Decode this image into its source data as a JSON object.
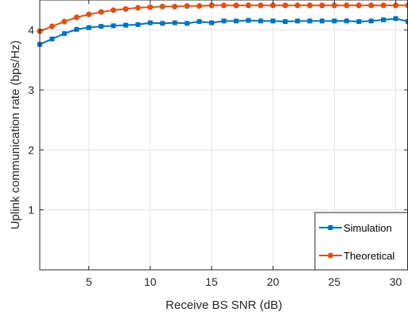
{
  "chart_data": {
    "type": "line",
    "xlabel": "Receive BS SNR (dB)",
    "ylabel": "Uplink communication rate (bps/Hz)",
    "xlim": [
      1,
      31
    ],
    "ylim": [
      0,
      4.5
    ],
    "xticks": [
      5,
      10,
      15,
      20,
      25,
      30
    ],
    "yticks": [
      1,
      2,
      3,
      4
    ],
    "grid": true,
    "legend_position": "bottom-right",
    "x": [
      1,
      2,
      3,
      4,
      5,
      6,
      7,
      8,
      9,
      10,
      11,
      12,
      13,
      14,
      15,
      16,
      17,
      18,
      19,
      20,
      21,
      22,
      23,
      24,
      25,
      26,
      27,
      28,
      29,
      30,
      31
    ],
    "series": [
      {
        "name": "Simulation",
        "color": "#0072BD",
        "marker": "square",
        "values": [
          3.76,
          3.85,
          3.94,
          4.01,
          4.04,
          4.06,
          4.07,
          4.08,
          4.09,
          4.12,
          4.11,
          4.12,
          4.11,
          4.14,
          4.12,
          4.15,
          4.15,
          4.16,
          4.15,
          4.15,
          4.14,
          4.15,
          4.15,
          4.15,
          4.15,
          4.15,
          4.14,
          4.15,
          4.17,
          4.19,
          4.14
        ]
      },
      {
        "name": "Theoretical",
        "color": "#D95319",
        "marker": "circle",
        "values": [
          3.98,
          4.06,
          4.14,
          4.21,
          4.26,
          4.3,
          4.33,
          4.35,
          4.37,
          4.38,
          4.39,
          4.39,
          4.4,
          4.4,
          4.41,
          4.41,
          4.41,
          4.41,
          4.41,
          4.41,
          4.41,
          4.41,
          4.41,
          4.41,
          4.41,
          4.41,
          4.41,
          4.41,
          4.41,
          4.41,
          4.41
        ]
      }
    ]
  }
}
